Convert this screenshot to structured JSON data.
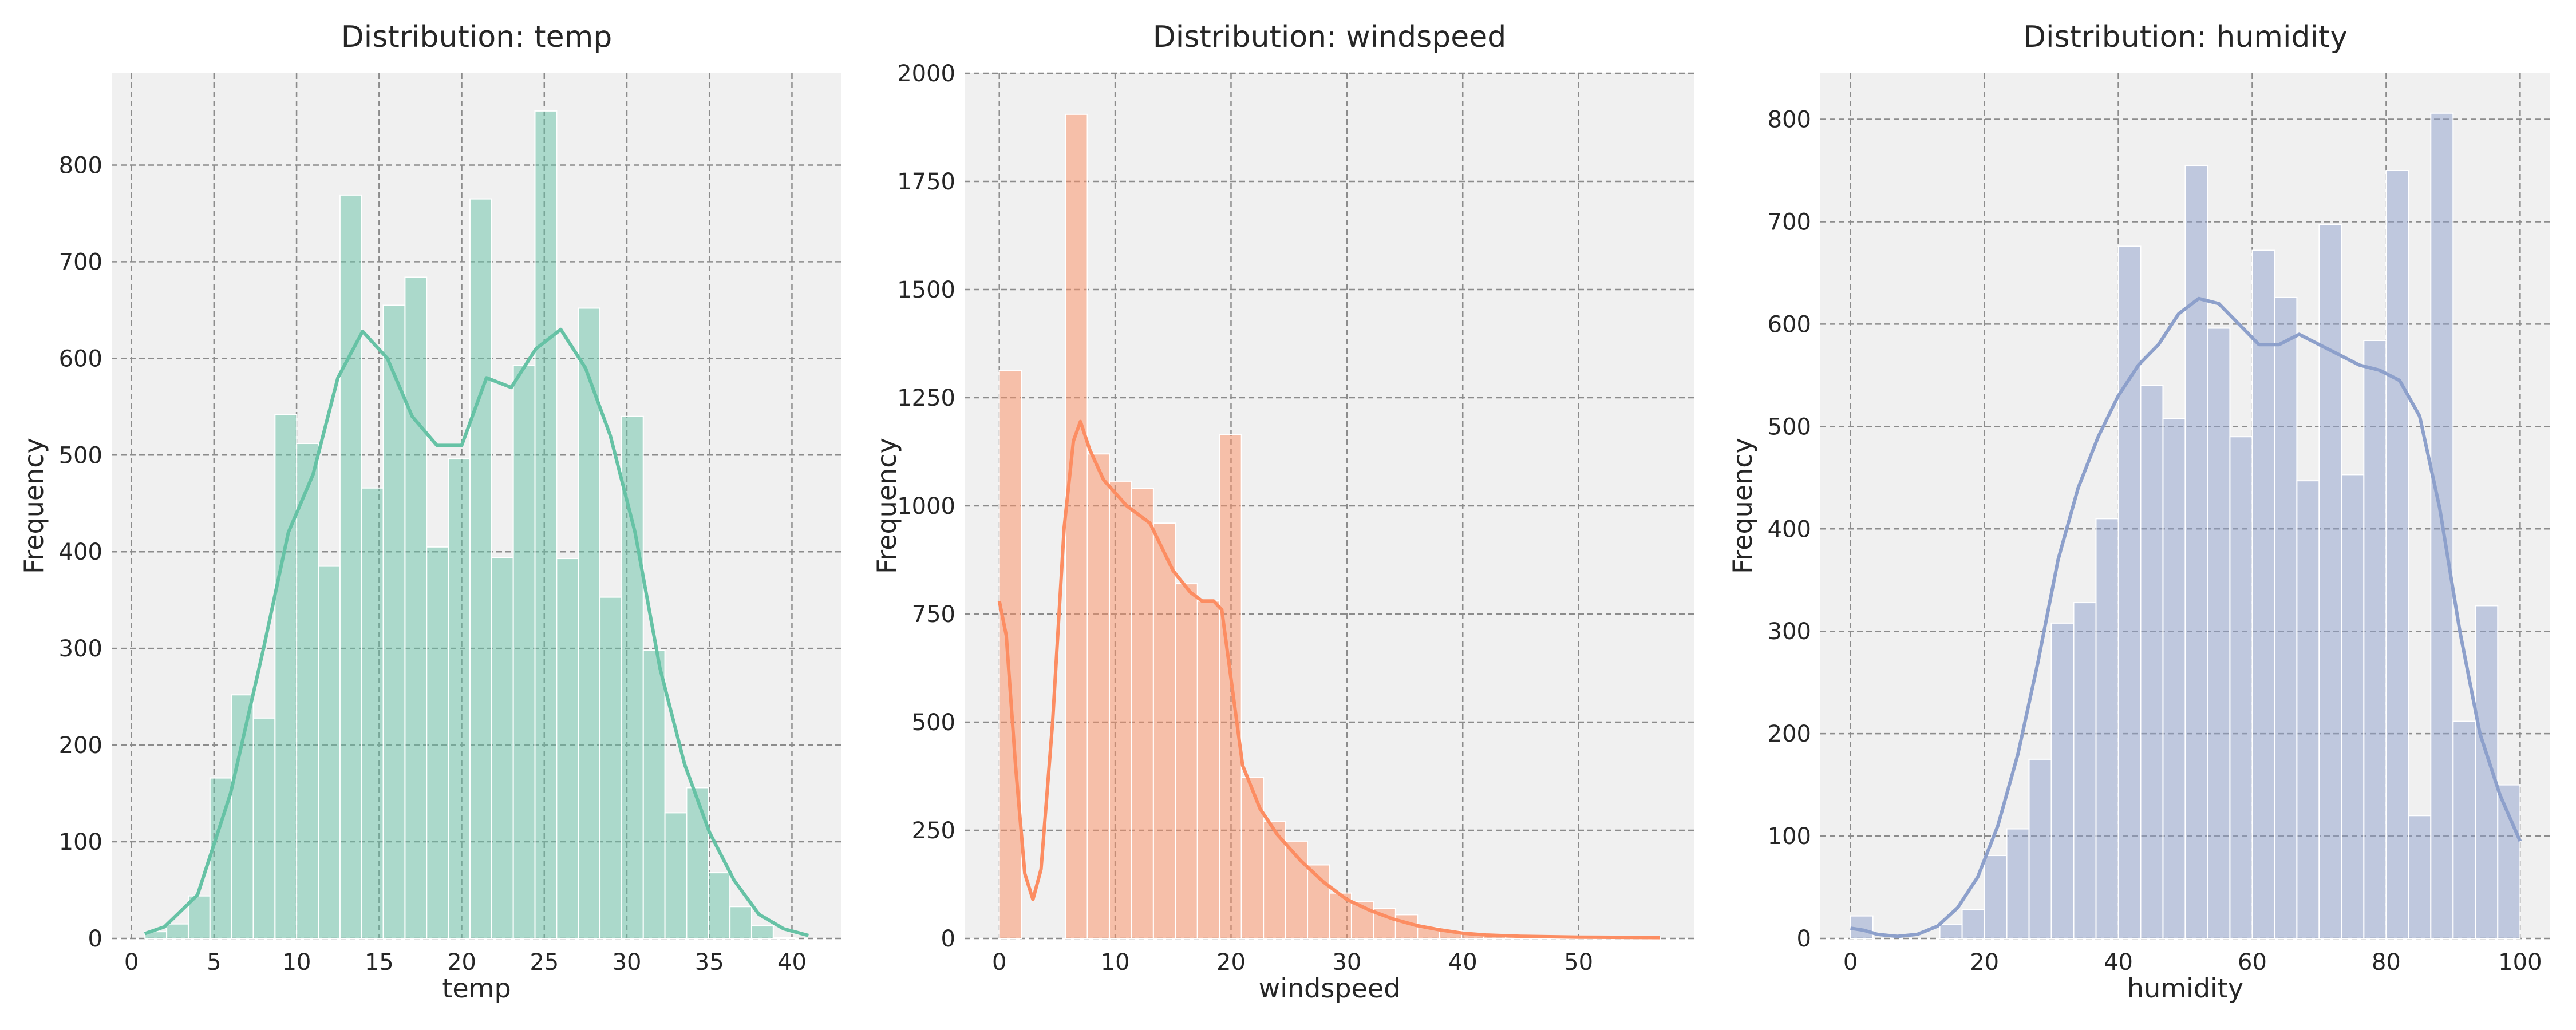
{
  "chart_data": [
    {
      "type": "bar",
      "title": "Distribution: temp",
      "xlabel": "temp",
      "ylabel": "Frequency",
      "color": "#66c2a5",
      "xlim": [
        -1.2,
        43.0
      ],
      "ylim": [
        0,
        895
      ],
      "xticks": [
        0,
        5,
        10,
        15,
        20,
        25,
        30,
        35,
        40
      ],
      "yticks": [
        0,
        100,
        200,
        300,
        400,
        500,
        600,
        700,
        800
      ],
      "bin_start": 0.82,
      "bin_width": 1.312,
      "values": [
        7,
        15,
        44,
        166,
        252,
        228,
        542,
        512,
        385,
        769,
        466,
        655,
        684,
        405,
        496,
        765,
        394,
        593,
        856,
        393,
        652,
        353,
        540,
        298,
        130,
        156,
        68,
        33,
        13,
        1
      ],
      "kde": [
        [
          0.8,
          5
        ],
        [
          2,
          12
        ],
        [
          4,
          45
        ],
        [
          6,
          150
        ],
        [
          8,
          300
        ],
        [
          9.5,
          420
        ],
        [
          11,
          480
        ],
        [
          12.5,
          580
        ],
        [
          14,
          628
        ],
        [
          15.5,
          600
        ],
        [
          17,
          540
        ],
        [
          18.5,
          510
        ],
        [
          20,
          510
        ],
        [
          21.5,
          580
        ],
        [
          23,
          570
        ],
        [
          24.5,
          610
        ],
        [
          26,
          630
        ],
        [
          27.5,
          590
        ],
        [
          29,
          520
        ],
        [
          30.5,
          420
        ],
        [
          32,
          280
        ],
        [
          33.5,
          180
        ],
        [
          35,
          110
        ],
        [
          36.5,
          60
        ],
        [
          38,
          25
        ],
        [
          39.5,
          10
        ],
        [
          41,
          3
        ]
      ],
      "grid": true
    },
    {
      "type": "bar",
      "title": "Distribution: windspeed",
      "xlabel": "windspeed",
      "ylabel": "Frequency",
      "color": "#fc8d62",
      "xlim": [
        -3.0,
        60.0
      ],
      "ylim": [
        0,
        2000
      ],
      "xticks": [
        0,
        10,
        20,
        30,
        40,
        50
      ],
      "yticks": [
        0,
        250,
        500,
        750,
        1000,
        1250,
        1500,
        1750,
        2000
      ],
      "bin_start": 0,
      "bin_width": 1.9,
      "values": [
        1313,
        0,
        0,
        1905,
        1120,
        1057,
        1040,
        960,
        820,
        780,
        1165,
        372,
        270,
        225,
        170,
        105,
        85,
        70,
        55,
        25,
        18,
        10,
        5,
        3,
        2,
        1,
        1,
        1,
        1,
        1
      ],
      "kde": [
        [
          0,
          780
        ],
        [
          0.6,
          700
        ],
        [
          1.4,
          400
        ],
        [
          2.2,
          150
        ],
        [
          2.9,
          90
        ],
        [
          3.6,
          160
        ],
        [
          4.6,
          500
        ],
        [
          5.6,
          950
        ],
        [
          6.4,
          1150
        ],
        [
          7,
          1195
        ],
        [
          7.8,
          1130
        ],
        [
          9,
          1060
        ],
        [
          11,
          1000
        ],
        [
          13,
          960
        ],
        [
          15,
          850
        ],
        [
          16.5,
          800
        ],
        [
          17.5,
          780
        ],
        [
          18.5,
          780
        ],
        [
          19.2,
          760
        ],
        [
          20,
          600
        ],
        [
          21,
          400
        ],
        [
          22.5,
          300
        ],
        [
          24,
          240
        ],
        [
          26,
          180
        ],
        [
          28,
          130
        ],
        [
          30,
          90
        ],
        [
          32,
          65
        ],
        [
          34,
          45
        ],
        [
          36,
          30
        ],
        [
          38,
          20
        ],
        [
          40,
          12
        ],
        [
          42,
          8
        ],
        [
          45,
          5
        ],
        [
          50,
          3
        ],
        [
          57,
          2
        ]
      ],
      "grid": true
    },
    {
      "type": "bar",
      "title": "Distribution: humidity",
      "xlabel": "humidity",
      "ylabel": "Frequency",
      "color": "#8da0cb",
      "xlim": [
        -4.5,
        104.5
      ],
      "ylim": [
        0,
        845
      ],
      "xticks": [
        0,
        20,
        40,
        60,
        80,
        100
      ],
      "yticks": [
        0,
        100,
        200,
        300,
        400,
        500,
        600,
        700,
        800
      ],
      "bin_start": 0,
      "bin_width": 3.333,
      "values": [
        22,
        0,
        0,
        0,
        14,
        28,
        81,
        107,
        175,
        308,
        328,
        410,
        676,
        540,
        508,
        755,
        596,
        490,
        672,
        626,
        447,
        697,
        453,
        584,
        750,
        120,
        806,
        212,
        325,
        150
      ],
      "kde": [
        [
          0,
          10
        ],
        [
          2,
          8
        ],
        [
          4,
          4
        ],
        [
          7,
          2
        ],
        [
          10,
          4
        ],
        [
          13,
          12
        ],
        [
          16,
          30
        ],
        [
          19,
          60
        ],
        [
          22,
          110
        ],
        [
          25,
          180
        ],
        [
          28,
          270
        ],
        [
          31,
          370
        ],
        [
          34,
          440
        ],
        [
          37,
          490
        ],
        [
          40,
          530
        ],
        [
          43,
          560
        ],
        [
          46,
          580
        ],
        [
          49,
          610
        ],
        [
          52,
          625
        ],
        [
          55,
          620
        ],
        [
          58,
          600
        ],
        [
          61,
          580
        ],
        [
          64,
          580
        ],
        [
          67,
          590
        ],
        [
          70,
          580
        ],
        [
          73,
          570
        ],
        [
          76,
          560
        ],
        [
          79,
          555
        ],
        [
          82,
          545
        ],
        [
          85,
          510
        ],
        [
          88,
          420
        ],
        [
          91,
          300
        ],
        [
          94,
          200
        ],
        [
          97,
          140
        ],
        [
          100,
          95
        ]
      ],
      "grid": true
    }
  ]
}
